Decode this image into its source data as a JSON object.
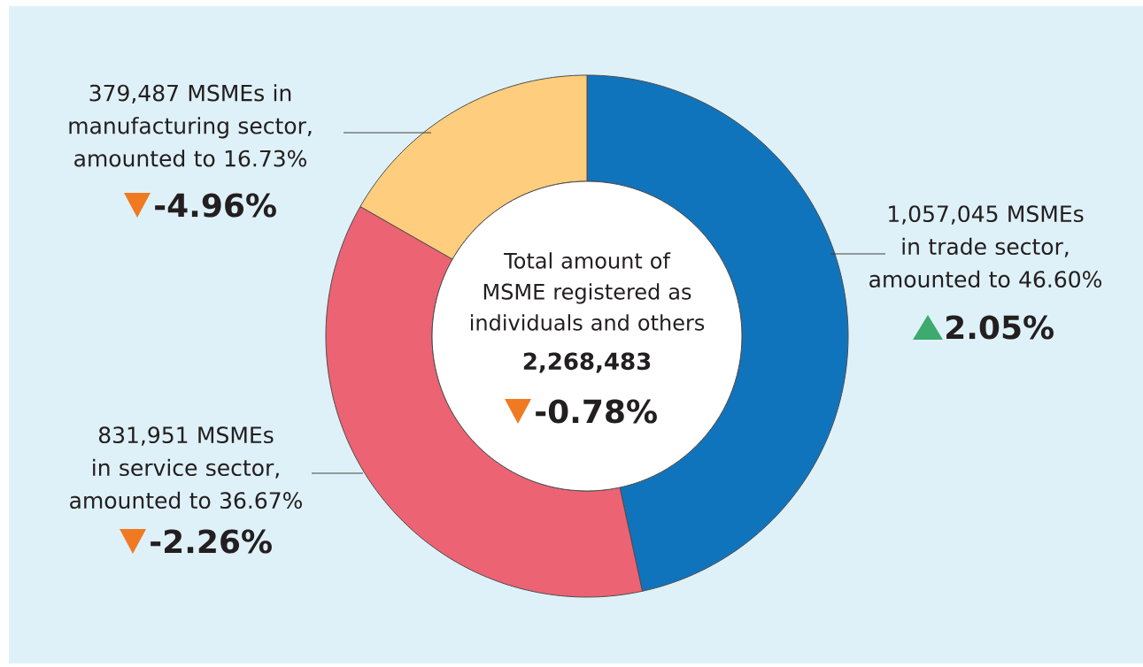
{
  "chart_data": {
    "type": "donut",
    "categories": [
      "1,057,045 MSMEs in trade sector, amounted to 46.60%",
      "831,951 MSMEs in service sector, amounted to 36.67%",
      "379,487 MSMEs in manufacturing sector, amounted to 16.73%"
    ],
    "values": [
      46.6,
      36.67,
      16.73
    ],
    "colors": [
      "#1074bc",
      "#ec6373",
      "#fecd7d"
    ],
    "annotations": [
      "2.05%",
      "-2.26%",
      "-4.96%",
      "Total amount of MSME registered as individuals and others",
      "2,268,483",
      "-0.78%"
    ]
  }
}
